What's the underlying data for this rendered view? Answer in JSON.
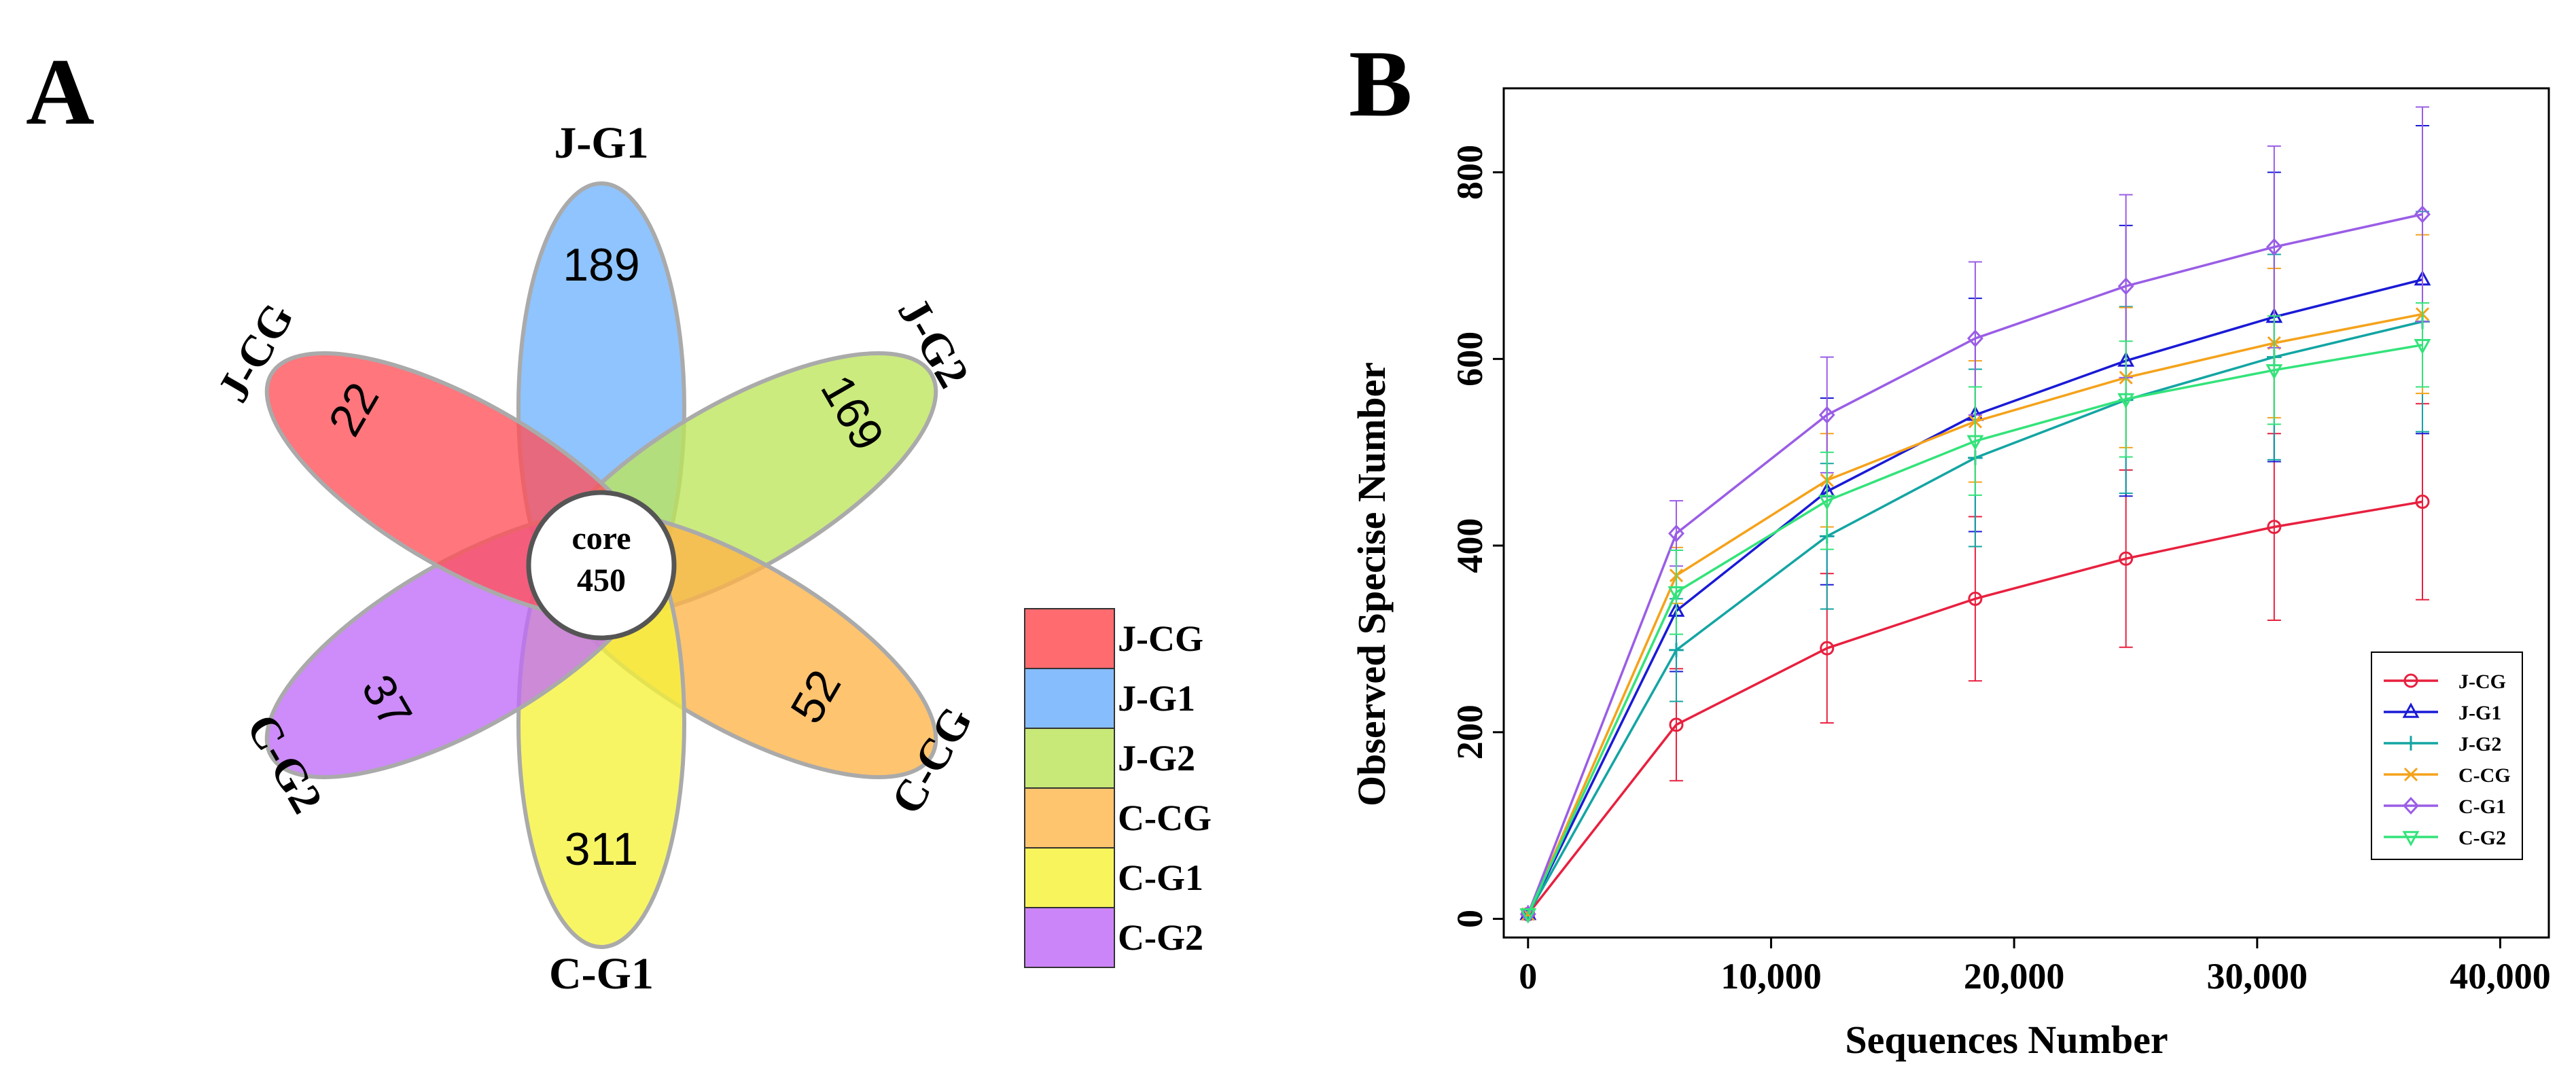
{
  "panel_a": {
    "label": "A",
    "core": {
      "label": "core",
      "count": "450"
    },
    "petals": [
      {
        "name": "J-G1",
        "count": "189",
        "color": "#6fb4ff"
      },
      {
        "name": "J-G2",
        "count": "169",
        "color": "#bde65a"
      },
      {
        "name": "C-CG",
        "count": "52",
        "color": "#ffb347"
      },
      {
        "name": "C-G1",
        "count": "311",
        "color": "#f6f23a"
      },
      {
        "name": "C-G2",
        "count": "37",
        "color": "#bf6cf7"
      },
      {
        "name": "J-CG",
        "count": "22",
        "color": "#ff4f58"
      }
    ],
    "legend": [
      {
        "name": "J-CG",
        "color": "#ff6b6f"
      },
      {
        "name": "J-G1",
        "color": "#86bdfc"
      },
      {
        "name": "J-G2",
        "color": "#c8e877"
      },
      {
        "name": "C-CG",
        "color": "#ffc56e"
      },
      {
        "name": "C-G1",
        "color": "#f8f45c"
      },
      {
        "name": "C-G2",
        "color": "#cc85f9"
      }
    ]
  },
  "panel_b": {
    "label": "B"
  },
  "chart_data": {
    "type": "line",
    "xlabel": "Sequences Number",
    "ylabel": "Observed Specise Number",
    "xlim": [
      -1000,
      42000
    ],
    "ylim": [
      -20,
      890
    ],
    "x_ticks": [
      0,
      10000,
      20000,
      30000,
      40000
    ],
    "x_tick_labels": [
      "0",
      "10,000",
      "20,000",
      "30,000",
      "40,000"
    ],
    "y_ticks": [
      0,
      200,
      400,
      600,
      800
    ],
    "y_tick_labels": [
      "0",
      "200",
      "400",
      "600",
      "800"
    ],
    "x": [
      0,
      6100,
      12300,
      18400,
      24600,
      30700,
      36800
    ],
    "legend_position": "bottom-right",
    "series": [
      {
        "name": "J-CG",
        "color": "#e8203f",
        "marker": "circle",
        "values": [
          5,
          208,
          290,
          343,
          386,
          420,
          447
        ],
        "errors": [
          0,
          60,
          80,
          88,
          95,
          100,
          105
        ]
      },
      {
        "name": "J-G1",
        "color": "#1a1ad6",
        "marker": "triangle-up",
        "values": [
          5,
          330,
          458,
          540,
          598,
          645,
          685
        ],
        "errors": [
          0,
          65,
          100,
          125,
          145,
          155,
          165
        ]
      },
      {
        "name": "J-G2",
        "color": "#13a5a3",
        "marker": "plus",
        "values": [
          5,
          288,
          410,
          494,
          556,
          602,
          640
        ],
        "errors": [
          0,
          55,
          78,
          95,
          100,
          110,
          118
        ]
      },
      {
        "name": "C-CG",
        "color": "#f5a21a",
        "marker": "x",
        "values": [
          5,
          368,
          470,
          533,
          580,
          617,
          648
        ],
        "errors": [
          0,
          30,
          50,
          65,
          75,
          80,
          85
        ]
      },
      {
        "name": "C-G1",
        "color": "#9a5de6",
        "marker": "diamond",
        "values": [
          5,
          413,
          540,
          622,
          678,
          720,
          755
        ],
        "errors": [
          0,
          35,
          62,
          82,
          98,
          108,
          115
        ]
      },
      {
        "name": "C-G2",
        "color": "#33e37a",
        "marker": "triangle-down",
        "values": [
          5,
          350,
          448,
          512,
          557,
          588,
          615
        ],
        "errors": [
          0,
          45,
          52,
          58,
          62,
          58,
          45
        ]
      }
    ]
  }
}
